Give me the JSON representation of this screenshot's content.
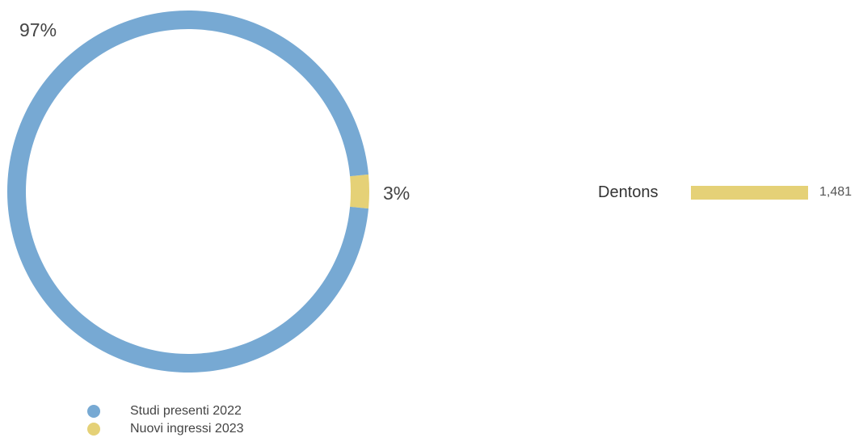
{
  "chart_data": [
    {
      "type": "pie",
      "series": [
        {
          "name": "Studi presenti 2022",
          "value": 97,
          "label": "97%",
          "color": "#77a9d3"
        },
        {
          "name": "Nuovi ingressi 2023",
          "value": 3,
          "label": "3%",
          "color": "#e5d177"
        }
      ]
    },
    {
      "type": "bar",
      "categories": [
        "Dentons"
      ],
      "values": [
        1481
      ],
      "value_labels": [
        "1,481"
      ],
      "color": "#e5d177"
    }
  ]
}
